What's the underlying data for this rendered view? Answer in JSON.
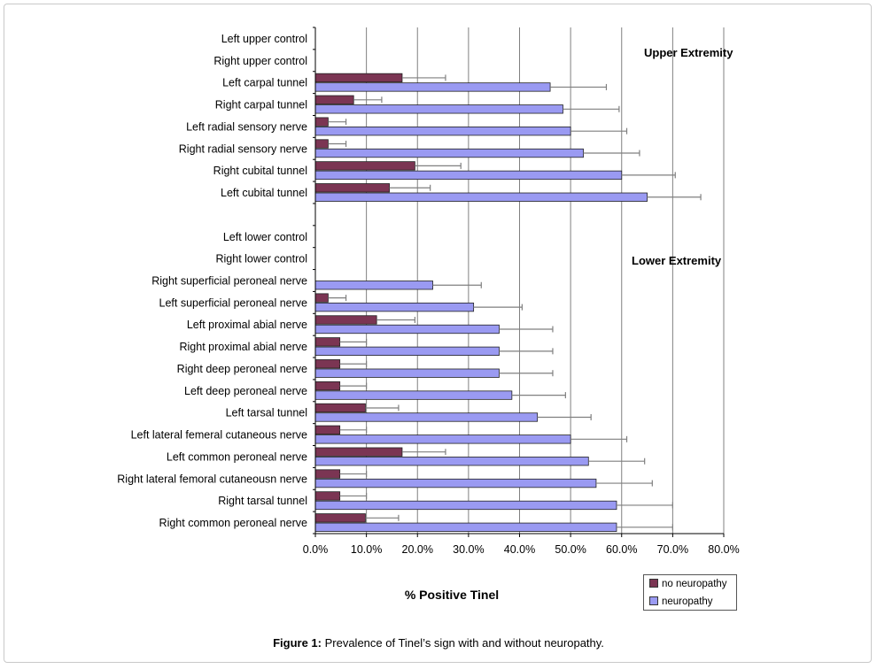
{
  "figure_caption": {
    "label": "Figure 1:",
    "text": " Prevalence of Tinel’s sign with and without neuropathy."
  },
  "colors": {
    "no_neuropathy": "#7b3553",
    "neuropathy": "#9a9af2",
    "gridline": "#808080",
    "error_bar": "#7f7f7f"
  },
  "chart_data": {
    "type": "bar",
    "orientation": "horizontal",
    "title": "",
    "xlabel": "% Positive Tinel",
    "ylabel": "",
    "xlim": [
      0,
      80
    ],
    "x_ticks": [
      "0.0%",
      "10.0%",
      "20.0%",
      "30.0%",
      "40.0%",
      "50.0%",
      "60.0%",
      "70.0%",
      "80.0%"
    ],
    "grid": "vertical major gridlines",
    "legend_position": "bottom-right",
    "annotations": [
      "Upper Extremity",
      "Lower Extremity"
    ],
    "categories": [
      "Left upper control",
      "Right upper control",
      "Left carpal tunnel",
      "Right carpal tunnel",
      "Left radial sensory nerve",
      "Right radial sensory nerve",
      "Right cubital tunnel",
      "Left cubital tunnel",
      "",
      "Left lower control",
      "Right lower control",
      "Right superficial peroneal nerve",
      "Left superficial peroneal nerve",
      "Left proximal abial nerve",
      "Right proximal abial nerve",
      "Right deep peroneal nerve",
      "Left deep peroneal nerve",
      "Left tarsal tunnel",
      "Left lateral femeral cutaneous nerve",
      "Left common peroneal nerve",
      "Right lateral femoral cutaneousn nerve",
      "Right tarsal tunnel",
      "Right common peroneal nerve"
    ],
    "series": [
      {
        "name": "no neuropathy",
        "values": [
          0,
          0,
          17,
          7.5,
          2.5,
          2.5,
          19.5,
          14.5,
          0,
          0,
          0,
          0,
          2.5,
          12,
          4.8,
          4.8,
          4.8,
          9.8,
          4.8,
          17,
          4.8,
          4.8,
          9.8
        ],
        "error": [
          0,
          0,
          8.5,
          5.5,
          3.5,
          3.5,
          9,
          8,
          0,
          0,
          0,
          0,
          3.5,
          7.5,
          5.2,
          5.2,
          5.2,
          6.5,
          5.2,
          8.5,
          5.2,
          5.2,
          6.5
        ]
      },
      {
        "name": "neuropathy",
        "values": [
          0,
          0,
          46,
          48.5,
          50,
          52.5,
          60,
          65,
          0,
          0,
          0,
          23,
          31,
          36,
          36,
          36,
          38.5,
          43.5,
          50,
          53.5,
          55,
          59,
          59
        ],
        "error": [
          0,
          0,
          11,
          11,
          11,
          11,
          10.5,
          10.5,
          0,
          0,
          0,
          9.5,
          9.5,
          10.5,
          10.5,
          10.5,
          10.5,
          10.5,
          11,
          11,
          11,
          11,
          11
        ]
      }
    ]
  }
}
